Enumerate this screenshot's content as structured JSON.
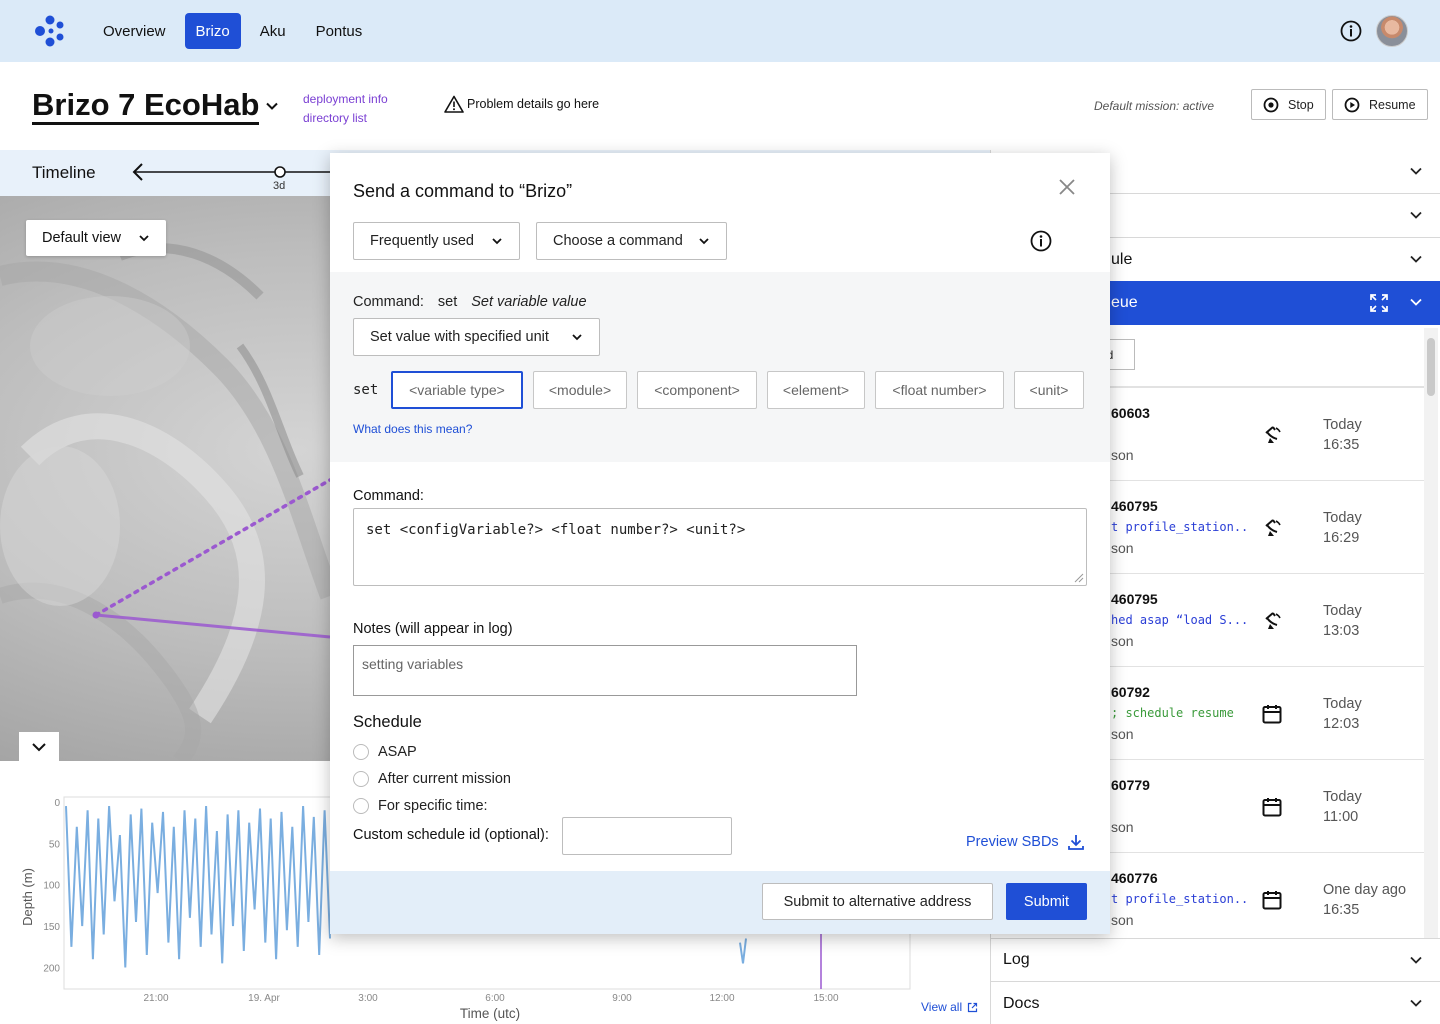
{
  "nav": {
    "items": [
      {
        "label": "Overview",
        "active": false
      },
      {
        "label": "Brizo",
        "active": true
      },
      {
        "label": "Aku",
        "active": false
      },
      {
        "label": "Pontus",
        "active": false
      }
    ]
  },
  "header": {
    "deployment_title": "Brizo 7 EcoHab",
    "link_deployment_info": "deployment info",
    "link_directory_list": "directory list",
    "problem_text": "Problem details go here",
    "default_mission": "Default mission: active",
    "stop_label": "Stop",
    "resume_label": "Resume"
  },
  "timeline": {
    "label": "Timeline",
    "tick_label": "3d"
  },
  "map": {
    "view_select": "Default view"
  },
  "chart_data": {
    "type": "line",
    "ylabel": "Depth (m)",
    "xlabel": "Time (utc)",
    "y_ticks": [
      "0",
      "50",
      "100",
      "150",
      "200"
    ],
    "ylim": [
      0,
      220
    ],
    "y_inverted": true,
    "x_ticks": [
      "21:00",
      "19. Apr",
      "3:00",
      "6:00",
      "9:00",
      "12:00",
      "15:00"
    ],
    "series": [
      {
        "values": [
          5,
          175,
          30,
          150,
          10,
          190,
          20,
          160,
          5,
          120,
          40,
          200,
          15,
          145,
          8,
          185,
          25,
          110,
          12,
          170,
          30,
          190,
          10,
          140,
          20,
          175,
          5,
          160,
          35,
          195,
          15,
          150,
          10,
          180,
          25,
          130,
          8,
          170,
          20,
          190,
          12,
          155,
          30,
          175,
          5,
          145,
          18,
          185,
          10,
          165
        ]
      }
    ],
    "line_color": "#7aaee0",
    "marker_line_color": "#9b59d0",
    "view_all": "View all"
  },
  "panel": {
    "accordion_top": [
      "",
      "",
      "ule"
    ],
    "queue_title": "eue",
    "filter_text": "nd",
    "queue_items": [
      {
        "id": "60603",
        "cmd": "",
        "cmd_color": "blue",
        "user": "son",
        "icon": "satellite-icon",
        "day": "Today",
        "time": "16:35"
      },
      {
        "id": "460795",
        "cmd": "t profile_station...",
        "cmd_color": "blue",
        "user": "son",
        "icon": "satellite-icon",
        "day": "Today",
        "time": "16:29"
      },
      {
        "id": "460795",
        "cmd": "hed asap “load S...",
        "cmd_color": "blue",
        "user": "son",
        "icon": "satellite-icon",
        "day": "Today",
        "time": "13:03"
      },
      {
        "id": "60792",
        "cmd": "; schedule resume",
        "cmd_color": "green",
        "user": "son",
        "icon": "calendar-icon",
        "day": "Today",
        "time": "12:03"
      },
      {
        "id": "60779",
        "cmd": "",
        "cmd_color": "blue",
        "user": "son",
        "icon": "calendar-icon",
        "day": "Today",
        "time": "11:00"
      },
      {
        "id": "460776",
        "cmd": "t profile_station...",
        "cmd_color": "blue",
        "user": "son",
        "icon": "calendar-icon",
        "day": "One day ago",
        "time": "16:35"
      }
    ],
    "log_label": "Log",
    "docs_label": "Docs"
  },
  "modal": {
    "title": "Send a command to “Brizo”",
    "frequently_used": "Frequently used",
    "choose_command": "Choose a command",
    "command_label": "Command:",
    "command_name": "set",
    "command_desc": "Set variable value",
    "variant": "Set value with specified unit",
    "set_keyword": "set",
    "tokens": [
      "<variable type>",
      "<module>",
      "<component>",
      "<element>",
      "<float number>",
      "<unit>"
    ],
    "what_link": "What does this mean?",
    "command_label2": "Command:",
    "command_text": "set <configVariable?> <float number?> <unit?>",
    "notes_label": "Notes (will appear in log)",
    "notes_placeholder": "setting variables",
    "schedule_title": "Schedule",
    "schedule_options": [
      "ASAP",
      "After current mission",
      "For specific time:"
    ],
    "custom_id_label": "Custom schedule id (optional):",
    "preview_label": "Preview SBDs",
    "submit_alt": "Submit to alternative address",
    "submit": "Submit"
  },
  "colors": {
    "accent": "#1f4fd6",
    "nav_bg": "#dbeaf8",
    "link_purple": "#7a3fd3"
  }
}
